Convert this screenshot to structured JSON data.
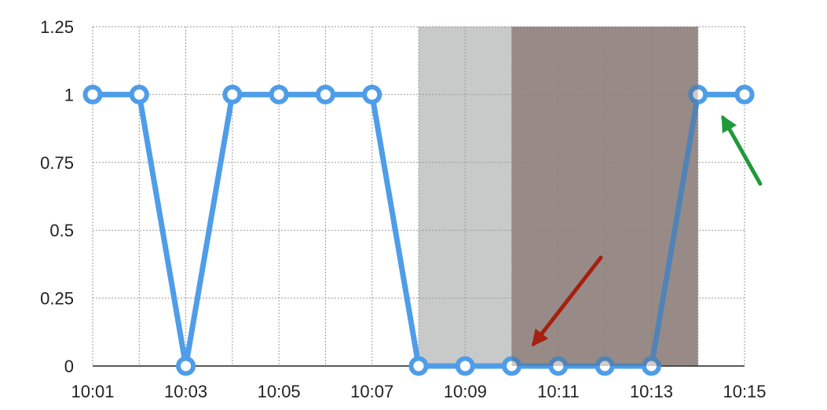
{
  "chart_data": {
    "type": "line",
    "title": "",
    "xlabel": "",
    "ylabel": "",
    "x": [
      "10:01",
      "10:02",
      "10:03",
      "10:04",
      "10:05",
      "10:06",
      "10:07",
      "10:08",
      "10:09",
      "10:10",
      "10:11",
      "10:12",
      "10:13",
      "10:14",
      "10:15"
    ],
    "x_tick_labels": [
      "10:01",
      "10:03",
      "10:05",
      "10:07",
      "10:09",
      "10:11",
      "10:13",
      "10:15"
    ],
    "y_tick_labels": [
      "0",
      "0.25",
      "0.5",
      "0.75",
      "1",
      "1.25"
    ],
    "y_ticks": [
      0,
      0.25,
      0.5,
      0.75,
      1,
      1.25
    ],
    "ylim": [
      0,
      1.25
    ],
    "grid": true,
    "series": [
      {
        "values": [
          1,
          1,
          0,
          1,
          1,
          1,
          1,
          0,
          0,
          0,
          0,
          0,
          0,
          1,
          1
        ],
        "color": "#4f9de8"
      }
    ],
    "shaded_regions": [
      {
        "x_start": "10:08",
        "x_end": "10:10",
        "color": "#c8cac9"
      },
      {
        "x_start": "10:10",
        "x_end": "10:14",
        "color": "#b0a8a6"
      }
    ],
    "annotations": [
      {
        "type": "arrow",
        "color": "#a52010",
        "points_to": "10:10"
      },
      {
        "type": "arrow",
        "color": "#1f9a3a",
        "points_to": "10:14"
      }
    ]
  }
}
